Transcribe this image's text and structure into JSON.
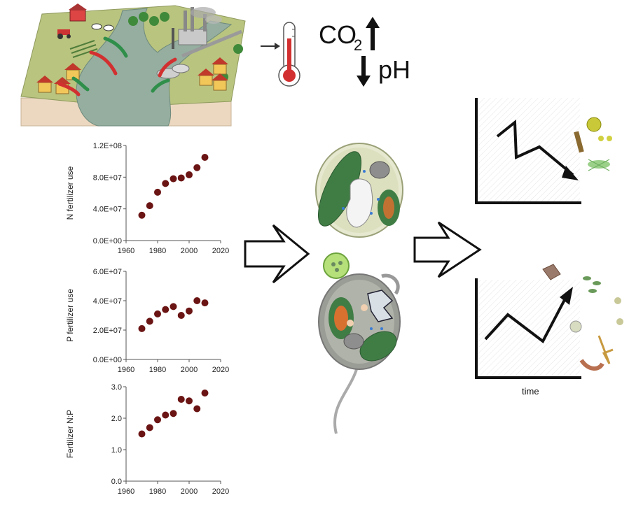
{
  "header": {
    "co2_main": "CO",
    "co2_sub": "2",
    "ph_label": "pH",
    "arrow_up_icon": "arrow-up-icon",
    "arrow_down_icon": "arrow-down-icon",
    "thermometer_icon": "thermometer-icon"
  },
  "trend_panels": {
    "time_label": "time"
  },
  "chart_data": [
    {
      "type": "scatter",
      "title": "",
      "xlabel": "",
      "ylabel": "N fertilizer use",
      "xlim": [
        1960,
        2020
      ],
      "ylim": [
        0,
        120000000
      ],
      "x_ticks": [
        "1960",
        "1980",
        "2000",
        "2020"
      ],
      "y_ticks": [
        "0.0E+00",
        "4.0E+07",
        "8.0E+07",
        "1.2E+08"
      ],
      "x": [
        1970,
        1975,
        1980,
        1985,
        1990,
        1995,
        2000,
        2005,
        2010
      ],
      "y": [
        32000000,
        44000000,
        61000000,
        72000000,
        78000000,
        79000000,
        83000000,
        92000000,
        105000000
      ]
    },
    {
      "type": "scatter",
      "title": "",
      "xlabel": "",
      "ylabel": "P fertilizer use",
      "xlim": [
        1960,
        2020
      ],
      "ylim": [
        0,
        60000000
      ],
      "x_ticks": [
        "1960",
        "1980",
        "2000",
        "2020"
      ],
      "y_ticks": [
        "0.0E+00",
        "2.0E+07",
        "4.0E+07",
        "6.0E+07"
      ],
      "x": [
        1970,
        1975,
        1980,
        1985,
        1990,
        1995,
        2000,
        2005,
        2010
      ],
      "y": [
        21000000,
        26000000,
        31000000,
        34000000,
        36000000,
        30000000,
        33000000,
        40000000,
        38500000
      ]
    },
    {
      "type": "scatter",
      "title": "",
      "xlabel": "",
      "ylabel": "Fertilizer N:P",
      "xlim": [
        1960,
        2020
      ],
      "ylim": [
        0,
        3
      ],
      "x_ticks": [
        "1960",
        "1980",
        "2000",
        "2020"
      ],
      "y_ticks": [
        "0.0",
        "1.0",
        "2.0",
        "3.0"
      ],
      "x": [
        1970,
        1975,
        1980,
        1985,
        1990,
        1995,
        2000,
        2005,
        2010
      ],
      "y": [
        1.5,
        1.7,
        1.95,
        2.1,
        2.15,
        2.6,
        2.55,
        2.3,
        2.8
      ]
    }
  ],
  "colors": {
    "marker": "#6b1414",
    "land": "#b7c27e",
    "water": "#8fa89a",
    "cell_outer": "#dfe3c6",
    "cell_green": "#3f7d45",
    "nucleus": "#d87030",
    "arrow_red": "#d23030",
    "arrow_green": "#2f8f4a"
  }
}
